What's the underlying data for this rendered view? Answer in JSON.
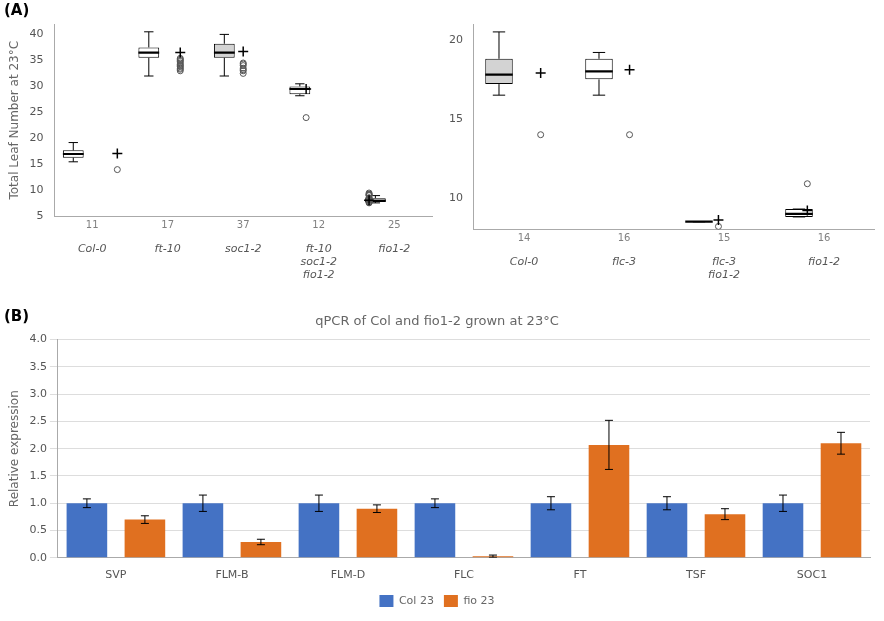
{
  "chart_data": [
    {
      "type": "box",
      "annotations": [
        "(A)"
      ],
      "ylabel": "Total Leaf Number at 23°C",
      "categories": [
        "Col-0",
        "ft-10",
        "soc1-2",
        "ft-10\nsoc1-2\nfio1-2",
        "fio1-2"
      ],
      "n_labels": [
        "11",
        "17",
        "37",
        "12",
        "25"
      ],
      "medians": [
        17.0,
        36.5,
        36.5,
        29.5,
        8.0
      ],
      "q1": [
        16.3,
        35.5,
        35.5,
        28.5,
        7.8
      ],
      "q3": [
        17.7,
        37.5,
        38.2,
        30.0,
        8.5
      ],
      "whislo": [
        15.5,
        32.0,
        32.0,
        28.2,
        7.6
      ],
      "whishi": [
        19.2,
        40.5,
        40.0,
        30.5,
        9.0
      ],
      "means": [
        17.1,
        36.5,
        36.7,
        29.5,
        8.1
      ],
      "fliers": [
        [
          14.0
        ],
        [
          33.0,
          33.5,
          34.0,
          34.5,
          34.2,
          33.8,
          33.3,
          34.8,
          35.0,
          35.2,
          35.4
        ],
        [
          32.5,
          33.0,
          33.5,
          33.2,
          34.0,
          34.5,
          34.3
        ],
        [
          24.0
        ],
        [
          7.6,
          7.7,
          7.8,
          7.9,
          8.1,
          8.2,
          8.3,
          8.4,
          8.5,
          8.6,
          9.0,
          9.1,
          9.2,
          9.3,
          9.5
        ]
      ],
      "colors": [
        "white",
        "white",
        "#d3d3d3",
        "white",
        "#d3d3d3"
      ],
      "ylim": [
        5,
        42
      ],
      "yticks": [
        5,
        10,
        15,
        20,
        25,
        30,
        35,
        40
      ],
      "grid": false
    },
    {
      "type": "box",
      "categories": [
        "Col-0",
        "flc-3",
        "flc-3\nfio1-2",
        "fio1-2"
      ],
      "n_labels": [
        "14",
        "16",
        "15",
        "16"
      ],
      "medians": [
        17.8,
        18.0,
        8.5,
        9.0
      ],
      "q1": [
        17.2,
        17.5,
        8.5,
        8.8
      ],
      "q3": [
        18.8,
        18.8,
        8.5,
        9.3
      ],
      "whislo": [
        16.5,
        16.5,
        8.5,
        8.8
      ],
      "whishi": [
        20.5,
        19.2,
        8.5,
        9.3
      ],
      "means": [
        17.9,
        18.1,
        8.6,
        9.2
      ],
      "fliers": [
        [
          14.0
        ],
        [
          14.0
        ],
        [
          8.2
        ],
        [
          10.9
        ]
      ],
      "colors": [
        "#d3d3d3",
        "white",
        "white",
        "white"
      ],
      "ylim": [
        8,
        21
      ],
      "yticks": [
        10,
        15,
        20
      ],
      "grid": false
    },
    {
      "type": "bar",
      "annotations": [
        "(B)"
      ],
      "title": "qPCR of Col and fio1-2 grown at 23°C",
      "ylabel": "Relative expression",
      "categories": [
        "SVP",
        "FLM-B",
        "FLM-D",
        "FLC",
        "FT",
        "TSF",
        "SOC1"
      ],
      "series": [
        {
          "name": "Col 23",
          "color": "#4472c4",
          "values": [
            1.0,
            1.0,
            1.0,
            1.0,
            1.0,
            1.0,
            1.0
          ],
          "errors": [
            0.08,
            0.15,
            0.15,
            0.08,
            0.12,
            0.12,
            0.15
          ]
        },
        {
          "name": "fio 23",
          "color": "#e07020",
          "values": [
            0.7,
            0.29,
            0.9,
            0.03,
            2.07,
            0.8,
            2.1
          ],
          "errors": [
            0.07,
            0.05,
            0.07,
            0.02,
            0.45,
            0.1,
            0.2
          ]
        }
      ],
      "ylim": [
        0,
        4
      ],
      "yticks": [
        {
          "value": 0,
          "label": "0.0"
        },
        0.5,
        {
          "value": 1,
          "label": "1.0"
        },
        1.5,
        {
          "value": 2,
          "label": "2.0"
        },
        2.5,
        {
          "value": 3,
          "label": "3.0"
        },
        3.5,
        {
          "value": 4,
          "label": "4.0"
        }
      ],
      "grid": true,
      "legend": "bottom"
    }
  ]
}
